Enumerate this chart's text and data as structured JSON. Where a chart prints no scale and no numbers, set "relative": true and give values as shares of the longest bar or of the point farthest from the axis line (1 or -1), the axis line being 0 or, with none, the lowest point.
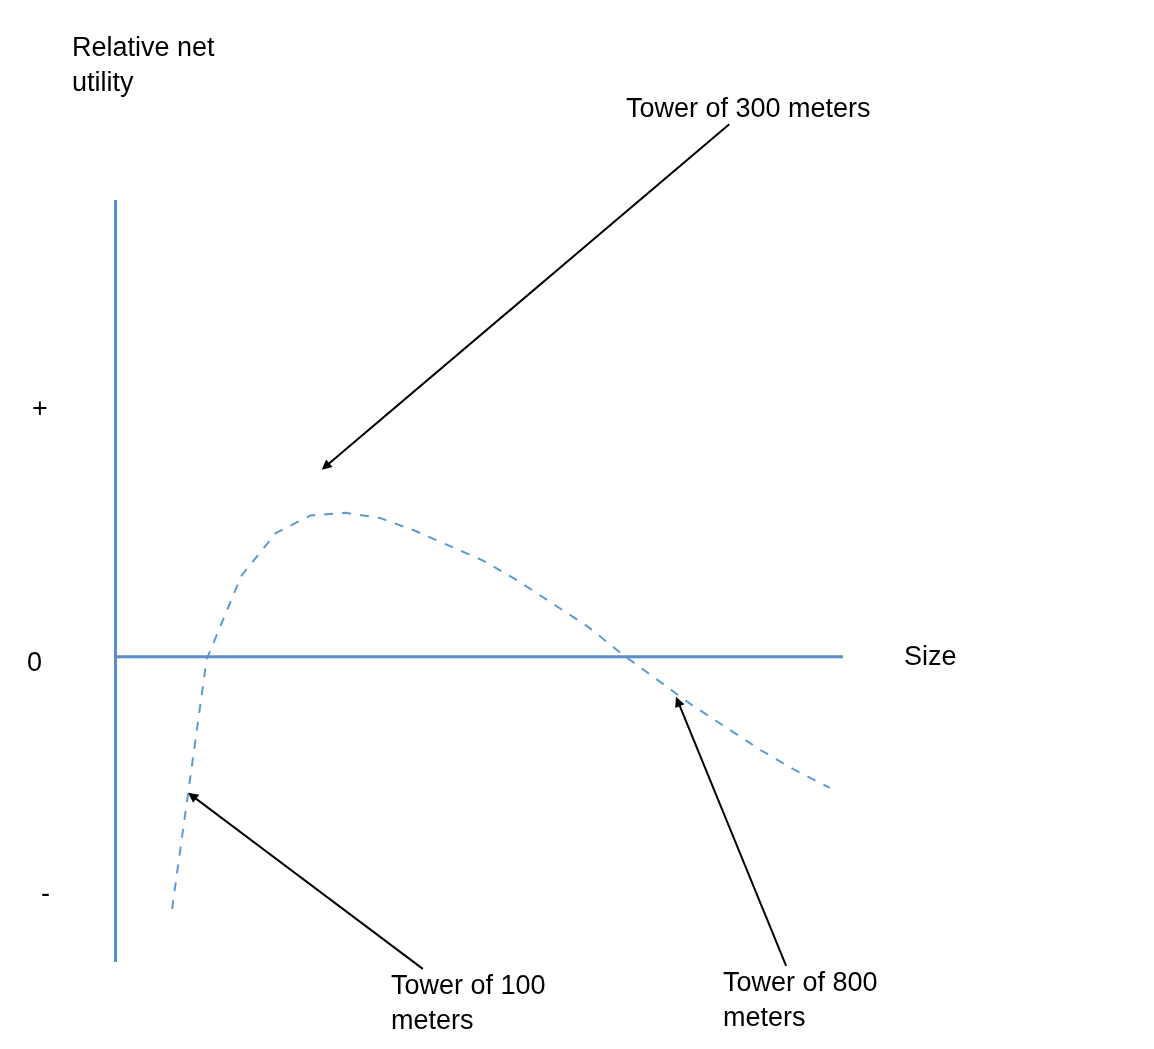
{
  "chart_data": {
    "type": "line",
    "relative": true,
    "line_style": "dashed",
    "xlabel": "Size",
    "ref_lines": [
      {
        "axis": "y",
        "value": 0,
        "color": "#5b8fc9"
      }
    ],
    "categories": [
      null,
      null,
      null,
      null,
      null,
      null,
      null,
      null,
      null,
      null,
      null,
      null,
      null,
      null,
      null,
      null,
      null,
      null,
      null,
      null
    ],
    "series": [
      {
        "color": "#5b9bd5",
        "values": [
          -1.0,
          -0.01,
          0.32,
          0.49,
          0.56,
          0.57,
          0.55,
          0.5,
          0.44,
          0.38,
          0.3,
          0.21,
          0.12,
          0.01,
          -0.09,
          -0.19,
          -0.28,
          -0.37,
          -0.45,
          -0.52
        ]
      }
    ],
    "annotations": [
      "+",
      "0",
      "-",
      "Tower of 300 meters",
      "Tower of 100\nmeters",
      "Tower of 800\nmeters",
      "Relative net\nutility"
    ]
  }
}
